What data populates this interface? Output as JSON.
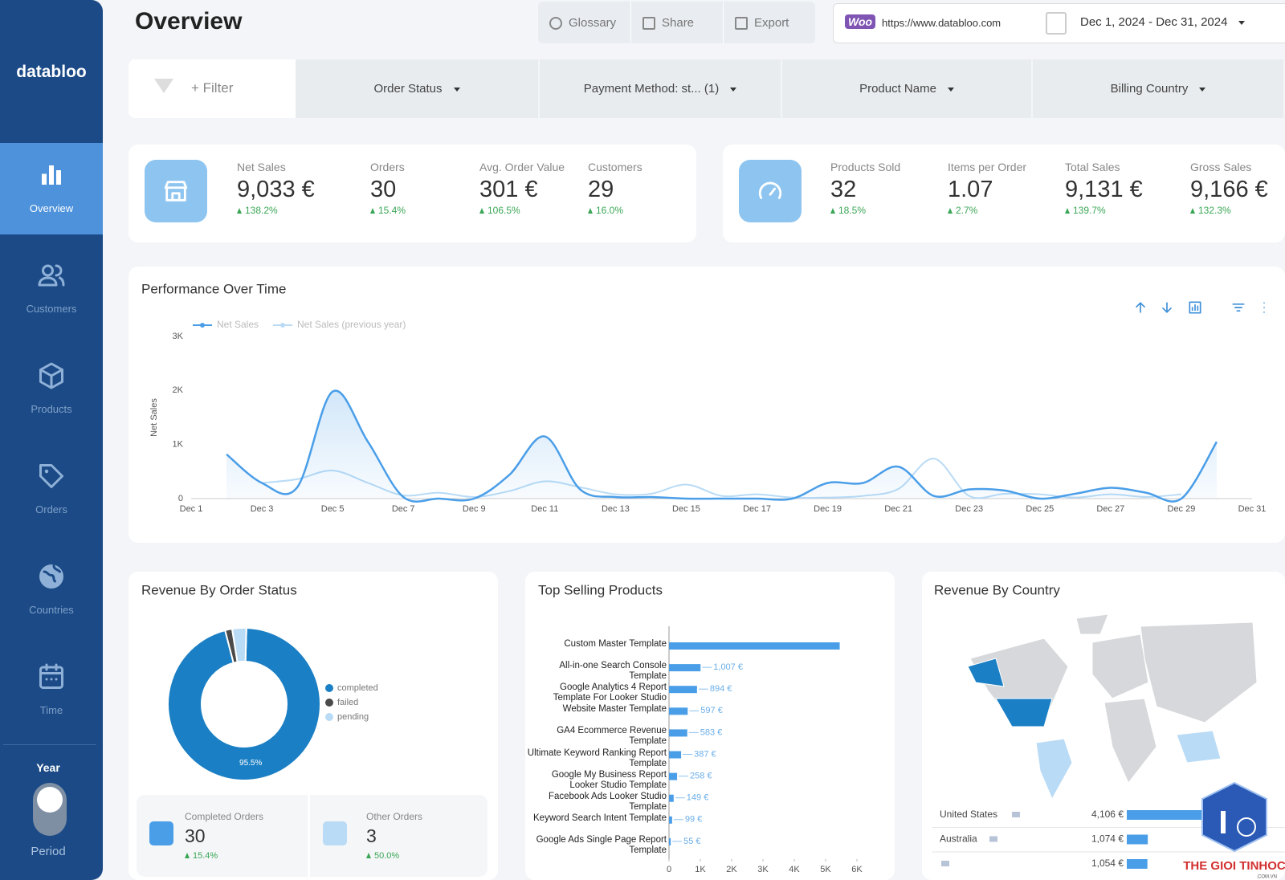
{
  "sidebar": {
    "brand": "databloo",
    "nav": [
      "Overview",
      "Customers",
      "Products",
      "Orders",
      "Countries",
      "Time"
    ],
    "toggle_top": "Year",
    "toggle_bottom": "Period"
  },
  "header": {
    "title": "Overview",
    "buttons": [
      "Glossary",
      "Share",
      "Export"
    ],
    "logo": "Woo",
    "url": "https://www.databloo.com",
    "date_range": "Dec 1, 2024 - Dec 31, 2024"
  },
  "filters": {
    "add": "+ Filter",
    "dropdowns": [
      "Order Status",
      "Payment Method: st... (1)",
      "Product Name",
      "Billing Country"
    ]
  },
  "kpis": [
    {
      "label": "Net Sales",
      "value": "9,033 €",
      "change": "138.2%"
    },
    {
      "label": "Orders",
      "value": "30",
      "change": "15.4%"
    },
    {
      "label": "Avg. Order Value",
      "value": "301 €",
      "change": "106.5%"
    },
    {
      "label": "Customers",
      "value": "29",
      "change": "16.0%"
    },
    {
      "label": "Products Sold",
      "value": "32",
      "change": "18.5%"
    },
    {
      "label": "Items per Order",
      "value": "1.07",
      "change": "2.7%"
    },
    {
      "label": "Total Sales",
      "value": "9,131 €",
      "change": "139.7%"
    },
    {
      "label": "Gross Sales",
      "value": "9,166 €",
      "change": "132.3%"
    }
  ],
  "order_summary": [
    {
      "label": "Completed Orders",
      "value": "30",
      "change": "15.4%"
    },
    {
      "label": "Other Orders",
      "value": "3",
      "change": "50.0%"
    }
  ],
  "chart_data": [
    {
      "type": "line",
      "title": "Performance Over Time",
      "y_label": "Net Sales",
      "legend": "top-left",
      "grid": false,
      "categories": [
        "Dec 1",
        null,
        "Dec 3",
        null,
        "Dec 5",
        null,
        "Dec 7",
        null,
        "Dec 9",
        null,
        "Dec 11",
        null,
        "Dec 13",
        null,
        "Dec 15",
        null,
        "Dec 17",
        null,
        "Dec 19",
        null,
        "Dec 21",
        null,
        "Dec 23",
        null,
        "Dec 25",
        null,
        "Dec 27",
        null,
        "Dec 29",
        null,
        "Dec 31"
      ],
      "series": [
        {
          "name": "Net Sales",
          "color": "#4a9ee8",
          "values": [
            null,
            820,
            290,
            210,
            1980,
            1050,
            30,
            0,
            0,
            440,
            1150,
            170,
            30,
            30,
            0,
            0,
            0,
            0,
            290,
            290,
            590,
            50,
            170,
            150,
            0,
            90,
            200,
            110,
            0,
            1050,
            null
          ]
        },
        {
          "name": "Net Sales (previous year)",
          "color": "#b9dbf6",
          "values": [
            null,
            null,
            290,
            360,
            520,
            290,
            60,
            110,
            30,
            140,
            320,
            210,
            80,
            90,
            260,
            50,
            80,
            20,
            20,
            50,
            180,
            740,
            50,
            90,
            80,
            20,
            80,
            30,
            80,
            null,
            null
          ]
        }
      ],
      "ylim": [
        0,
        3000
      ],
      "yticks": [
        0,
        {
          "value": 1000,
          "label": "1K"
        },
        {
          "value": 2000,
          "label": "2K"
        },
        {
          "value": 3000,
          "label": "3K"
        }
      ]
    },
    {
      "type": "pie",
      "title": "Revenue By Order Status",
      "legend": "right",
      "categories": [
        "completed",
        "failed",
        "pending"
      ],
      "colors": [
        "#1a7fc4",
        "#4a4a4a",
        "#b9dbf6"
      ],
      "values": [
        95.5,
        1.5,
        3.0
      ],
      "value_labels": [
        "95.5%",
        null,
        null
      ]
    },
    {
      "type": "hbar",
      "title": "Top Selling Products",
      "color": "#4a9ee8",
      "categories": [
        "Custom Master Template",
        "All-in-one Search Console Template",
        "Google Analytics 4 Report Template For Looker Studio",
        "Website Master Template",
        "GA4 Ecommerce Revenue Template",
        "Ultimate Keyword Ranking Report Template",
        "Google My Business Report Looker Studio Template",
        "Facebook Ads Looker Studio Template",
        "Keyword Search Intent Template",
        "Google Ads Single Page Report Template"
      ],
      "values": [
        5450,
        1007,
        894,
        597,
        583,
        387,
        258,
        149,
        99,
        55
      ],
      "value_labels": [
        null,
        "1,007 €",
        "894 €",
        "597 €",
        "583 €",
        "387 €",
        "258 €",
        "149 €",
        "99 €",
        "55 €"
      ],
      "xlim": [
        0,
        6000
      ],
      "xticks": [
        0,
        {
          "value": 1000,
          "label": "1K"
        },
        {
          "value": 2000,
          "label": "2K"
        },
        {
          "value": 3000,
          "label": "3K"
        },
        {
          "value": 4000,
          "label": "4K"
        },
        {
          "value": 5000,
          "label": "5K"
        },
        {
          "value": 6000,
          "label": "6K"
        }
      ]
    },
    {
      "type": "country-bars",
      "title": "Revenue By Country",
      "color": "#4a9ee8",
      "categories": [
        "United States",
        "Australia",
        null
      ],
      "values": [
        4106,
        1074,
        1054
      ],
      "value_labels": [
        "4,106 €",
        "1,074 €",
        "1,054 €"
      ]
    }
  ],
  "watermark": {
    "text": "THE GIOI TINHOC",
    "sub": ".COM.VN"
  }
}
